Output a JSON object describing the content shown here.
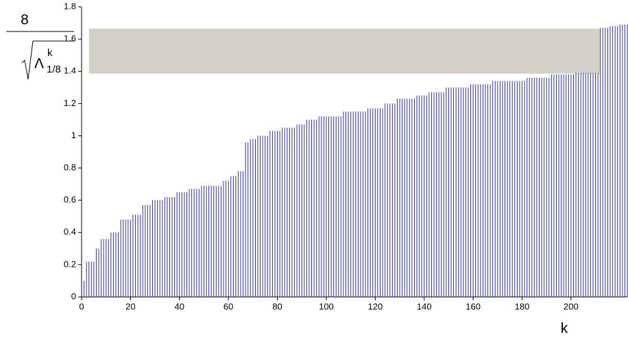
{
  "chart_data": {
    "type": "stem",
    "ylabel": {
      "numerator": "8",
      "symbol": "Λ",
      "superscript": "k",
      "subscript": "1/8"
    },
    "xlabel": "k",
    "xlim": [
      0,
      223
    ],
    "ylim": [
      0,
      1.8
    ],
    "xticks": [
      0,
      20,
      40,
      60,
      80,
      100,
      120,
      140,
      160,
      180,
      200
    ],
    "yticks": [
      0,
      0.2,
      0.4,
      0.6,
      0.8,
      1,
      1.2,
      1.4,
      1.6,
      1.8
    ],
    "color": "#2c2cb4",
    "band": {
      "x": [
        3,
        212
      ],
      "y": [
        1.385,
        1.665
      ],
      "color": "#d4d0c8"
    },
    "x": [
      1,
      2,
      3,
      4,
      5,
      6,
      7,
      8,
      9,
      10,
      11,
      12,
      13,
      14,
      15,
      16,
      17,
      18,
      19,
      20,
      21,
      22,
      23,
      24,
      25,
      26,
      27,
      28,
      29,
      30,
      31,
      32,
      33,
      34,
      35,
      36,
      37,
      38,
      39,
      40,
      41,
      42,
      43,
      44,
      45,
      46,
      47,
      48,
      49,
      50,
      51,
      52,
      53,
      54,
      55,
      56,
      57,
      58,
      59,
      60,
      61,
      62,
      63,
      64,
      65,
      66,
      67,
      68,
      69,
      70,
      71,
      72,
      73,
      74,
      75,
      76,
      77,
      78,
      79,
      80,
      81,
      82,
      83,
      84,
      85,
      86,
      87,
      88,
      89,
      90,
      91,
      92,
      93,
      94,
      95,
      96,
      97,
      98,
      99,
      100,
      101,
      102,
      103,
      104,
      105,
      106,
      107,
      108,
      109,
      110,
      111,
      112,
      113,
      114,
      115,
      116,
      117,
      118,
      119,
      120,
      121,
      122,
      123,
      124,
      125,
      126,
      127,
      128,
      129,
      130,
      131,
      132,
      133,
      134,
      135,
      136,
      137,
      138,
      139,
      140,
      141,
      142,
      143,
      144,
      145,
      146,
      147,
      148,
      149,
      150,
      151,
      152,
      153,
      154,
      155,
      156,
      157,
      158,
      159,
      160,
      161,
      162,
      163,
      164,
      165,
      166,
      167,
      168,
      169,
      170,
      171,
      172,
      173,
      174,
      175,
      176,
      177,
      178,
      179,
      180,
      181,
      182,
      183,
      184,
      185,
      186,
      187,
      188,
      189,
      190,
      191,
      192,
      193,
      194,
      195,
      196,
      197,
      198,
      199,
      200,
      201,
      202,
      203,
      204,
      205,
      206,
      207,
      208,
      209,
      210,
      211,
      212,
      213,
      214,
      215,
      216,
      217,
      218,
      219,
      220,
      221,
      222,
      223
    ],
    "values": [
      0.1,
      0.22,
      0.22,
      0.22,
      0.22,
      0.3,
      0.3,
      0.36,
      0.36,
      0.36,
      0.36,
      0.4,
      0.4,
      0.4,
      0.4,
      0.48,
      0.48,
      0.48,
      0.48,
      0.48,
      0.51,
      0.51,
      0.51,
      0.51,
      0.57,
      0.57,
      0.57,
      0.57,
      0.6,
      0.6,
      0.6,
      0.6,
      0.6,
      0.62,
      0.62,
      0.62,
      0.62,
      0.62,
      0.65,
      0.65,
      0.65,
      0.65,
      0.65,
      0.67,
      0.67,
      0.67,
      0.67,
      0.67,
      0.69,
      0.69,
      0.69,
      0.69,
      0.69,
      0.69,
      0.69,
      0.69,
      0.69,
      0.72,
      0.72,
      0.72,
      0.75,
      0.75,
      0.75,
      0.78,
      0.78,
      0.78,
      0.96,
      0.96,
      0.98,
      0.98,
      0.98,
      1,
      1,
      1,
      1,
      1,
      1.03,
      1.03,
      1.03,
      1.03,
      1.03,
      1.05,
      1.05,
      1.05,
      1.05,
      1.05,
      1.05,
      1.07,
      1.07,
      1.07,
      1.07,
      1.1,
      1.1,
      1.1,
      1.1,
      1.1,
      1.12,
      1.12,
      1.12,
      1.12,
      1.12,
      1.12,
      1.12,
      1.12,
      1.12,
      1.12,
      1.15,
      1.15,
      1.15,
      1.15,
      1.15,
      1.15,
      1.15,
      1.15,
      1.15,
      1.15,
      1.17,
      1.17,
      1.17,
      1.17,
      1.17,
      1.17,
      1.17,
      1.2,
      1.2,
      1.2,
      1.2,
      1.2,
      1.23,
      1.23,
      1.23,
      1.23,
      1.23,
      1.23,
      1.23,
      1.23,
      1.25,
      1.25,
      1.25,
      1.25,
      1.25,
      1.27,
      1.27,
      1.27,
      1.27,
      1.27,
      1.27,
      1.27,
      1.3,
      1.3,
      1.3,
      1.3,
      1.3,
      1.3,
      1.3,
      1.3,
      1.3,
      1.3,
      1.32,
      1.32,
      1.32,
      1.32,
      1.32,
      1.32,
      1.32,
      1.32,
      1.32,
      1.34,
      1.34,
      1.34,
      1.34,
      1.34,
      1.34,
      1.34,
      1.34,
      1.34,
      1.34,
      1.34,
      1.34,
      1.34,
      1.34,
      1.36,
      1.36,
      1.36,
      1.36,
      1.36,
      1.36,
      1.36,
      1.36,
      1.36,
      1.36,
      1.38,
      1.38,
      1.38,
      1.38,
      1.38,
      1.38,
      1.38,
      1.38,
      1.38,
      1.38,
      1.39,
      1.39,
      1.39,
      1.39,
      1.39,
      1.39,
      1.39,
      1.39,
      1.39,
      1.39,
      1.67,
      1.67,
      1.67,
      1.67,
      1.68,
      1.68,
      1.68,
      1.68,
      1.69,
      1.69,
      1.69,
      1.69
    ]
  }
}
